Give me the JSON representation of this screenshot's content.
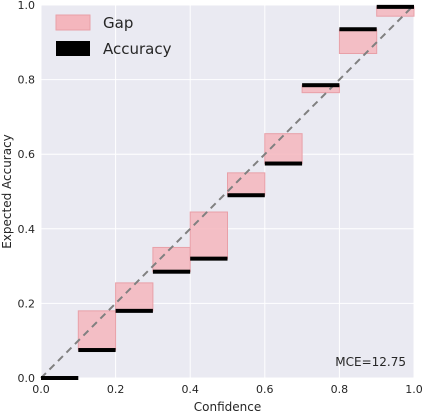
{
  "chart_data": {
    "type": "bar",
    "title": "",
    "xlabel": "Confidence",
    "ylabel": "Expected Accuracy",
    "xlim": [
      0.0,
      1.0
    ],
    "ylim": [
      0.0,
      1.0
    ],
    "xticks": [
      "0.0",
      "0.2",
      "0.4",
      "0.6",
      "0.8",
      "1.0"
    ],
    "yticks": [
      "0.0",
      "0.2",
      "0.4",
      "0.6",
      "0.8",
      "1.0"
    ],
    "grid": true,
    "legend_position": "top-left",
    "legend": [
      {
        "name": "Gap",
        "color": "#f4b6bd"
      },
      {
        "name": "Accuracy",
        "color": "#000000"
      }
    ],
    "annotation": "MCE=12.75",
    "bin_width": 0.1,
    "bins": [
      {
        "x": 0.0,
        "accuracy": 0.0,
        "expected": 0.0
      },
      {
        "x": 0.1,
        "accuracy": 0.075,
        "expected": 0.18
      },
      {
        "x": 0.2,
        "accuracy": 0.18,
        "expected": 0.255
      },
      {
        "x": 0.3,
        "accuracy": 0.285,
        "expected": 0.35
      },
      {
        "x": 0.4,
        "accuracy": 0.32,
        "expected": 0.445
      },
      {
        "x": 0.5,
        "accuracy": 0.49,
        "expected": 0.55
      },
      {
        "x": 0.6,
        "accuracy": 0.575,
        "expected": 0.655
      },
      {
        "x": 0.7,
        "accuracy": 0.785,
        "expected": 0.765
      },
      {
        "x": 0.8,
        "accuracy": 0.935,
        "expected": 0.87
      },
      {
        "x": 0.9,
        "accuracy": 0.995,
        "expected": 0.97
      }
    ],
    "colors": {
      "background": "#eaeaf2",
      "grid": "#ffffff",
      "gap_fill": "#f4b6bd",
      "gap_stroke": "#e8a0a8",
      "accuracy": "#000000",
      "diagonal": "#808080"
    }
  }
}
